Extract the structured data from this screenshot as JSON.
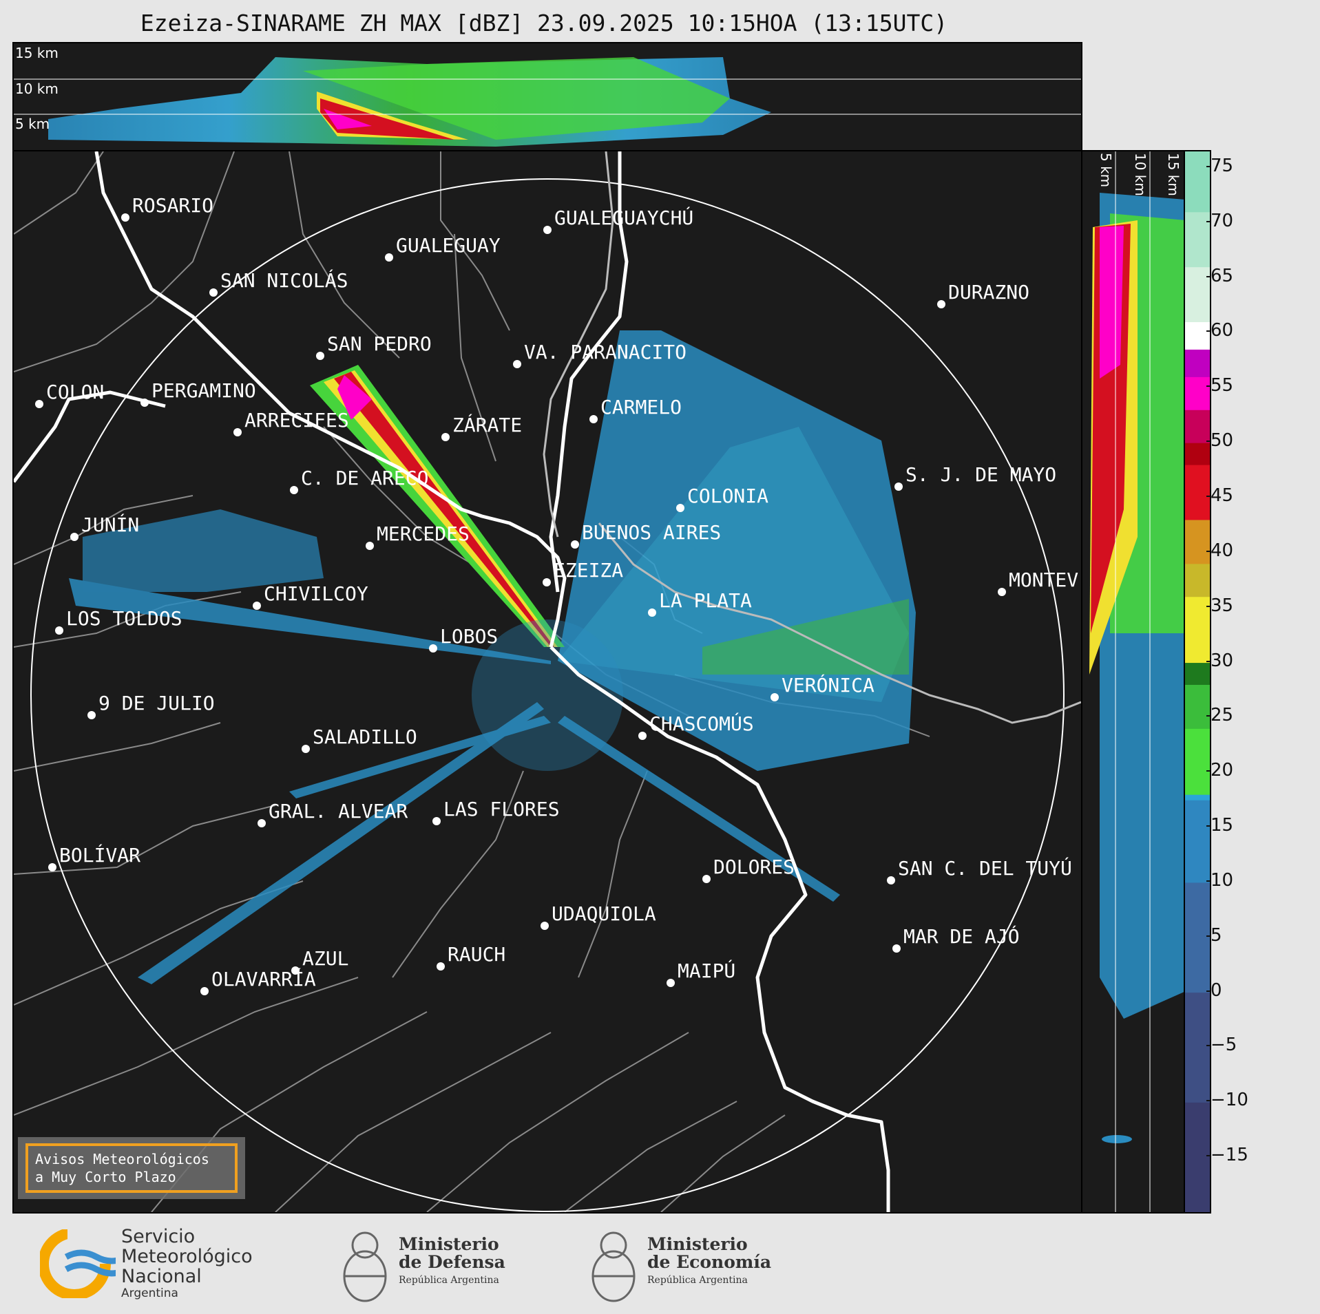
{
  "title": "Ezeiza-SINARAME ZH MAX [dBZ] 23.09.2025 10:15HOA (13:15UTC)",
  "top_panel": {
    "height_labels": [
      "15 km",
      "10 km",
      "5 km"
    ]
  },
  "side_panel": {
    "height_labels": [
      "5 km",
      "10 km",
      "15 km"
    ]
  },
  "colorbar": {
    "ticks": [
      "75",
      "70",
      "65",
      "60",
      "55",
      "50",
      "45",
      "40",
      "35",
      "30",
      "25",
      "20",
      "15",
      "10",
      "5",
      "0",
      "−5",
      "−10",
      "−15"
    ],
    "range": [
      -20,
      76.5
    ],
    "unit": "dBZ"
  },
  "cities": [
    {
      "name": "ROSARIO"
    },
    {
      "name": "GUALEGUAYCHÚ"
    },
    {
      "name": "GUALEGUAY"
    },
    {
      "name": "SAN NICOLÁS"
    },
    {
      "name": "DURAZNO"
    },
    {
      "name": "SAN PEDRO"
    },
    {
      "name": "VA. PARANACITO"
    },
    {
      "name": "COLON"
    },
    {
      "name": "PERGAMINO"
    },
    {
      "name": "CARMELO"
    },
    {
      "name": "ARRECIFES"
    },
    {
      "name": "ZÁRATE"
    },
    {
      "name": "C. DE ARECO"
    },
    {
      "name": "S. J. DE MAYO"
    },
    {
      "name": "COLONIA"
    },
    {
      "name": "JUNÍN"
    },
    {
      "name": "BUENOS AIRES"
    },
    {
      "name": "MERCEDES"
    },
    {
      "name": "EZEIZA"
    },
    {
      "name": "MONTEV"
    },
    {
      "name": "CHIVILCOY"
    },
    {
      "name": "LA PLATA"
    },
    {
      "name": "LOS TOLDOS"
    },
    {
      "name": "LOBOS"
    },
    {
      "name": "VERÓNICA"
    },
    {
      "name": "9 DE JULIO"
    },
    {
      "name": "CHASCOMÚS"
    },
    {
      "name": "SALADILLO"
    },
    {
      "name": "GRAL. ALVEAR"
    },
    {
      "name": "LAS FLORES"
    },
    {
      "name": "BOLÍVAR"
    },
    {
      "name": "DOLORES"
    },
    {
      "name": "SAN C. DEL TUYÚ"
    },
    {
      "name": "UDAQUIOLA"
    },
    {
      "name": "MAR DE AJÓ"
    },
    {
      "name": "RAUCH"
    },
    {
      "name": "AZUL"
    },
    {
      "name": "MAIPÚ"
    },
    {
      "name": "OLAVARRÍA"
    }
  ],
  "notice": {
    "line1": "Avisos Meteorológicos",
    "line2": "a Muy Corto Plazo"
  },
  "logos": {
    "smn": [
      "Servicio",
      "Meteorológico",
      "Nacional",
      "Argentina"
    ],
    "defensa": [
      "Ministerio",
      "de Defensa",
      "República Argentina"
    ],
    "economia": [
      "Ministerio",
      "de Economía",
      "República Argentina"
    ]
  },
  "colors": {
    "background": "#1b1b1b",
    "coast": "#ffffff",
    "borders": "#8a8a8a",
    "notice_border": "#f0a020"
  }
}
